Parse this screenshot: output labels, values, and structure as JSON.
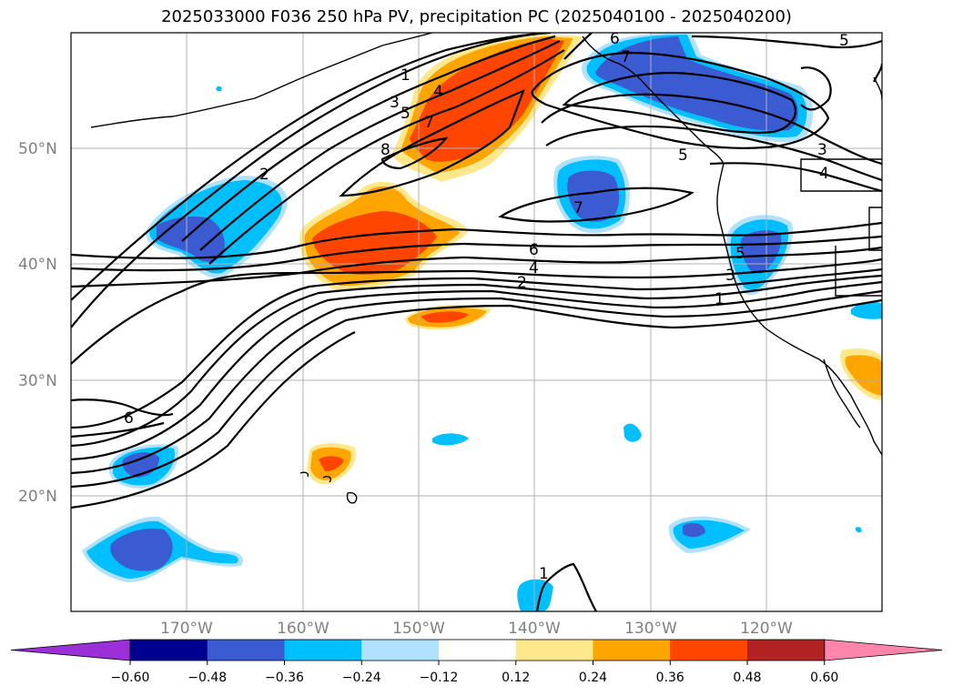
{
  "title": "2025033000 F036 250 hPa PV, precipitation PC (2025040100 - 2025040200)",
  "lat_labels": [
    "50°N",
    "40°N",
    "30°N",
    "20°N"
  ],
  "lon_labels": [
    "170°W",
    "160°W",
    "150°W",
    "140°W",
    "130°W",
    "120°W"
  ],
  "colorbar": {
    "ticks": [
      "−0.60",
      "−0.48",
      "−0.36",
      "−0.24",
      "−0.12",
      "0.12",
      "0.24",
      "0.36",
      "0.48",
      "0.60"
    ],
    "colors": [
      "#9b30d9",
      "#000090",
      "#3a5bd1",
      "#00bfff",
      "#b0e2ff",
      "#ffffff",
      "#ffe88c",
      "#ffa500",
      "#ff4500",
      "#b22222",
      "#ff85ad"
    ]
  },
  "contour_labels": [
    "1",
    "2",
    "3",
    "4",
    "5",
    "6",
    "7",
    "8",
    "1",
    "2",
    "3",
    "4",
    "5",
    "6",
    "7",
    "4",
    "5",
    "3",
    "6",
    "7",
    "5",
    "1"
  ],
  "colors": {
    "strong_neg": "#3a5bd1",
    "neg": "#00bfff",
    "weak_neg": "#b0e2ff",
    "weak_pos": "#ffe88c",
    "pos": "#ffa500",
    "strong_pos": "#ff4500"
  }
}
